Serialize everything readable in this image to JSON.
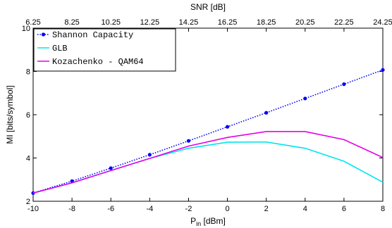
{
  "chart_data": {
    "type": "line",
    "xlabel": "P",
    "xlabel_sub": "in",
    "xlabel_unit": " [dBm]",
    "ylabel": "MI [bits/symbol]",
    "top_xlabel": "SNR [dB]",
    "xlim": [
      -10,
      8
    ],
    "ylim": [
      2,
      10
    ],
    "xticks": [
      "-10",
      "-8",
      "-6",
      "-4",
      "-2",
      "0",
      "2",
      "4",
      "6",
      "8"
    ],
    "yticks": [
      "2",
      "4",
      "6",
      "8",
      "10"
    ],
    "top_ticks": [
      "6.25",
      "8.25",
      "10.25",
      "12.25",
      "14.25",
      "16.25",
      "18.25",
      "20.25",
      "22.25",
      "24.25"
    ],
    "legend_position": "top-left",
    "grid": false,
    "series": [
      {
        "name": "Shannon Capacity",
        "color": "#0000ff",
        "style": "dotted-markers",
        "x": [
          -10,
          -8,
          -6,
          -4,
          -2,
          0,
          2,
          4,
          6,
          8
        ],
        "y": [
          2.38,
          2.93,
          3.53,
          4.15,
          4.79,
          5.44,
          6.09,
          6.75,
          7.41,
          8.07
        ]
      },
      {
        "name": "GLB",
        "color": "#00e5ee",
        "style": "solid",
        "x": [
          -10,
          -8,
          -6,
          -4,
          -2,
          0,
          2,
          4,
          6,
          8
        ],
        "y": [
          2.38,
          2.85,
          3.42,
          3.98,
          4.45,
          4.73,
          4.74,
          4.45,
          3.85,
          2.88
        ]
      },
      {
        "name": "Kozachenko - QAM64",
        "color": "#e600e6",
        "style": "solid",
        "x": [
          -10,
          -8,
          -6,
          -4,
          -2,
          0,
          2,
          4,
          6,
          8
        ],
        "y": [
          2.38,
          2.85,
          3.42,
          3.98,
          4.55,
          4.95,
          5.22,
          5.22,
          4.85,
          4.02
        ]
      }
    ]
  }
}
